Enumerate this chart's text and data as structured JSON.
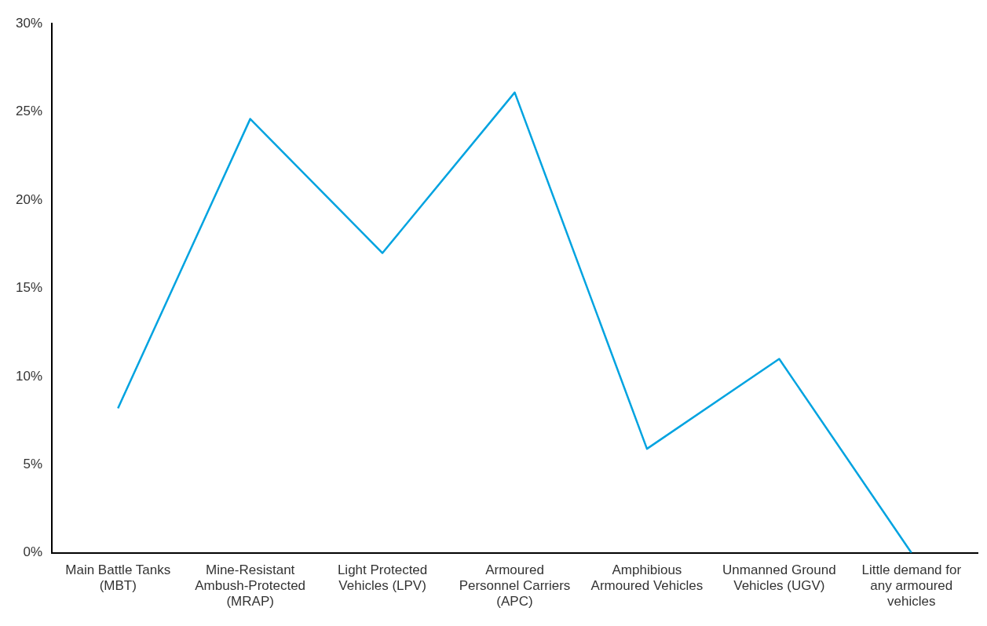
{
  "chart_data": {
    "type": "line",
    "categories": [
      "Main Battle Tanks (MBT)",
      "Mine-Resistant Ambush-Protected (MRAP)",
      "Light Protected Vehicles (LPV)",
      "Armoured Personnel Carriers (APC)",
      "Amphibious Armoured Vehicles",
      "Unmanned Ground Vehicles (UGV)",
      "Little demand for any armoured vehicles"
    ],
    "series": [
      {
        "color": "#00a3e0",
        "values": [
          8.2,
          24.6,
          17.0,
          26.1,
          5.9,
          11.0,
          0
        ]
      }
    ],
    "ylim": [
      0,
      30
    ],
    "yticks": [
      {
        "value": 0,
        "label": "0%"
      },
      {
        "value": 5,
        "label": "5%"
      },
      {
        "value": 10,
        "label": "10%"
      },
      {
        "value": 15,
        "label": "15%"
      },
      {
        "value": 20,
        "label": "20%"
      },
      {
        "value": 25,
        "label": "25%"
      },
      {
        "value": 30,
        "label": "30%"
      }
    ],
    "grid": false,
    "legend": false,
    "marker": "none",
    "line_style": "solid"
  }
}
